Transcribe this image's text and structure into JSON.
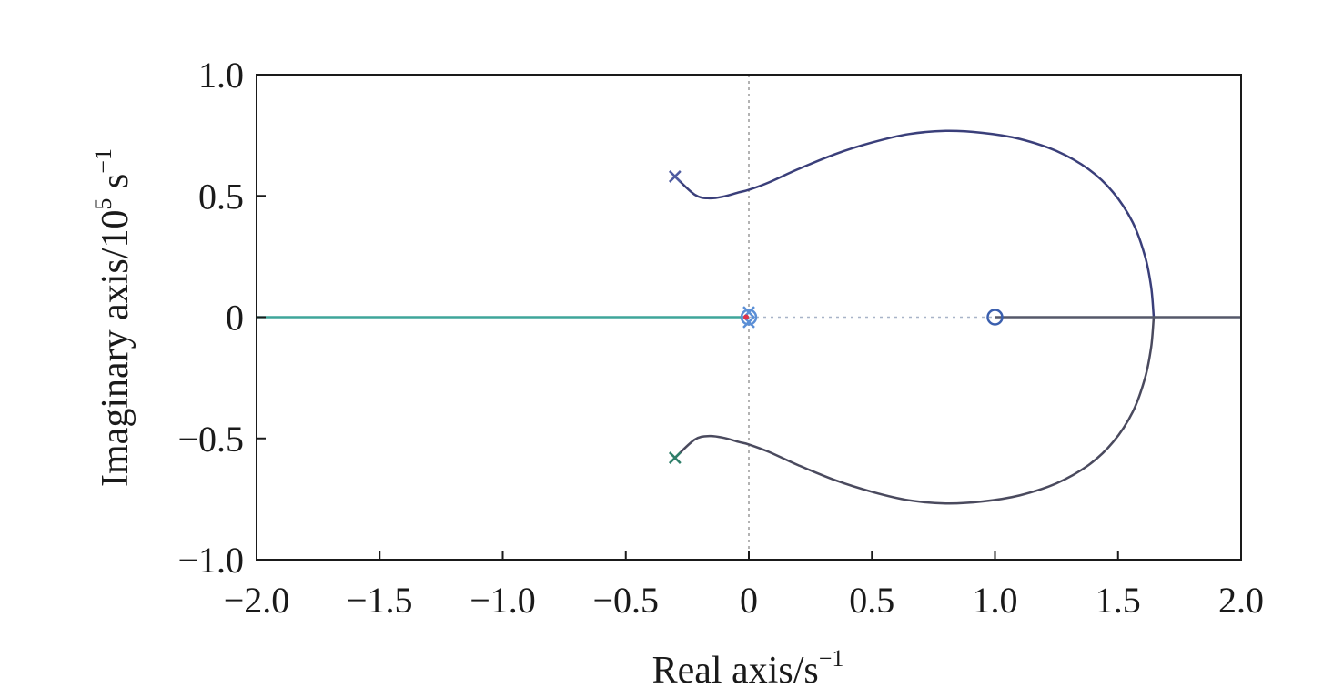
{
  "chart_data": {
    "type": "line",
    "subtype": "root-locus",
    "title": "",
    "xlabel": {
      "text": "Real axis/s",
      "sup": "−1"
    },
    "ylabel": {
      "text": "Imaginary axis/10",
      "sup1": "5",
      "mid": " s",
      "sup2": "−1"
    },
    "xlim": [
      -2.0,
      2.0
    ],
    "ylim": [
      -1.0,
      1.0
    ],
    "xticks": [
      -2.0,
      -1.5,
      -1.0,
      -0.5,
      0,
      0.5,
      1.0,
      1.5,
      2.0
    ],
    "xtick_labels": [
      "−2.0",
      "−1.5",
      "−1.0",
      "−0.5",
      "0",
      "0.5",
      "1.0",
      "1.5",
      "2.0"
    ],
    "yticks": [
      -1.0,
      -0.5,
      0,
      0.5,
      1.0
    ],
    "ytick_labels": [
      "−1.0",
      "−0.5",
      "0",
      "0.5",
      "1.0"
    ],
    "grid": false,
    "reference_lines": {
      "x_zero": "dotted",
      "y_zero_segment": [
        0,
        1.0
      ]
    },
    "colors": {
      "upper_branch": "#3a3f7a",
      "lower_branch": "#4a4a5e",
      "left_real_branch": "#3fa59a",
      "right_real_branch": "#55586a",
      "pole_upper": "#4e5ba0",
      "pole_lower": "#2f7f6a",
      "zero_marker": "#3b5fae",
      "origin_marker": "#5b8fd6",
      "origin_dot": "#e0334a"
    },
    "series": [
      {
        "id": "upper-branch",
        "points": [
          [
            -0.3,
            0.58
          ],
          [
            -0.22,
            0.505
          ],
          [
            -0.16,
            0.49
          ],
          [
            -0.1,
            0.498
          ],
          [
            -0.04,
            0.515
          ],
          [
            0,
            0.525
          ],
          [
            0.08,
            0.555
          ],
          [
            0.2,
            0.61
          ],
          [
            0.35,
            0.672
          ],
          [
            0.5,
            0.72
          ],
          [
            0.65,
            0.755
          ],
          [
            0.8,
            0.768
          ],
          [
            0.95,
            0.76
          ],
          [
            1.1,
            0.735
          ],
          [
            1.25,
            0.685
          ],
          [
            1.38,
            0.61
          ],
          [
            1.48,
            0.515
          ],
          [
            1.56,
            0.39
          ],
          [
            1.61,
            0.25
          ],
          [
            1.635,
            0.12
          ],
          [
            1.645,
            0
          ]
        ]
      },
      {
        "id": "lower-branch",
        "points": [
          [
            -0.3,
            -0.58
          ],
          [
            -0.22,
            -0.505
          ],
          [
            -0.16,
            -0.49
          ],
          [
            -0.1,
            -0.498
          ],
          [
            -0.04,
            -0.515
          ],
          [
            0,
            -0.525
          ],
          [
            0.08,
            -0.555
          ],
          [
            0.2,
            -0.61
          ],
          [
            0.35,
            -0.672
          ],
          [
            0.5,
            -0.72
          ],
          [
            0.65,
            -0.755
          ],
          [
            0.8,
            -0.768
          ],
          [
            0.95,
            -0.76
          ],
          [
            1.1,
            -0.735
          ],
          [
            1.25,
            -0.685
          ],
          [
            1.38,
            -0.61
          ],
          [
            1.48,
            -0.515
          ],
          [
            1.56,
            -0.39
          ],
          [
            1.61,
            -0.25
          ],
          [
            1.635,
            -0.12
          ],
          [
            1.645,
            0
          ]
        ]
      },
      {
        "id": "left-real-branch",
        "points": [
          [
            -2.0,
            0
          ],
          [
            0,
            0
          ]
        ]
      },
      {
        "id": "right-real-branch",
        "points": [
          [
            1.0,
            0
          ],
          [
            2.0,
            0
          ]
        ]
      }
    ],
    "poles": [
      [
        -0.3,
        0.58
      ],
      [
        -0.3,
        -0.58
      ],
      [
        0,
        0.02
      ],
      [
        0,
        -0.02
      ]
    ],
    "zeros": [
      [
        1.0,
        0
      ],
      [
        0,
        0
      ]
    ]
  }
}
